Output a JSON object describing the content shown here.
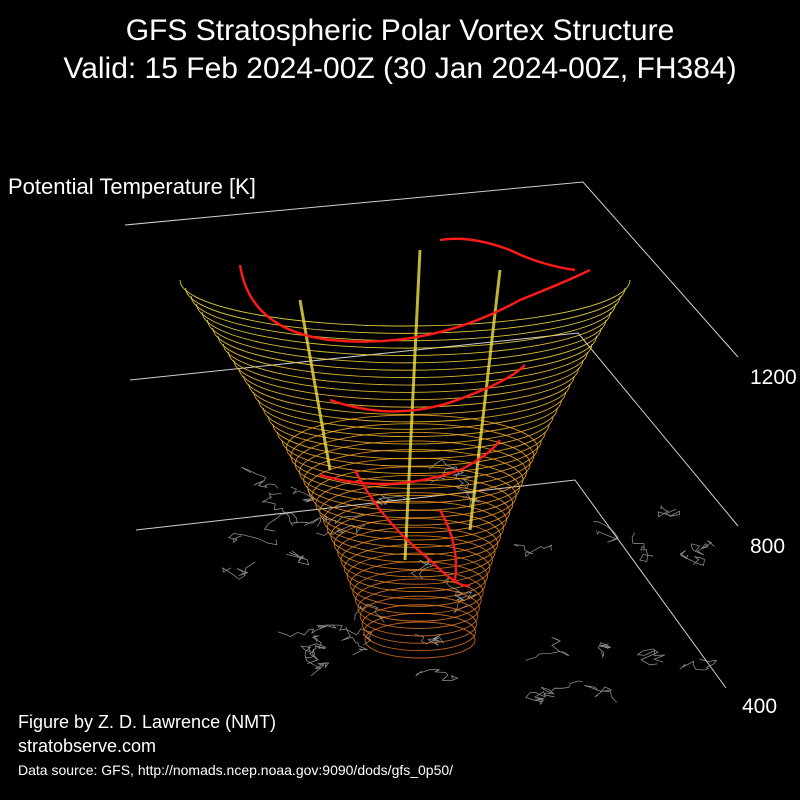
{
  "title_line1": "GFS Stratospheric Polar Vortex Structure",
  "title_line2": "Valid: 15 Feb 2024-00Z  (30 Jan 2024-00Z, FH384)",
  "credit_line1": "Figure by Z. D. Lawrence (NMT)",
  "credit_line2": "stratobserve.com",
  "source_line": "Data source: GFS, http://nomads.ncep.noaa.gov:9090/dods/gfs_0p50/",
  "chart_data": {
    "type": "surface3d",
    "title": "GFS Stratospheric Polar Vortex Structure",
    "subtitle": "Valid: 15 Feb 2024-00Z  (30 Jan 2024-00Z, FH384)",
    "zlabel": "Potential Temperature [K]",
    "z_ticks": [
      "400",
      "800",
      "1200"
    ],
    "z_tick_values": [
      400,
      800,
      1200
    ],
    "zlim": [
      400,
      1400
    ],
    "background": "#000000",
    "colors": {
      "low_levels": "#d2691e",
      "mid_levels": "#f0a020",
      "high_levels": "#f2e040",
      "vortex_edge": "#ff1a1a",
      "coastlines": "#8a8a8a",
      "axis_lines": "#cfcfcf"
    }
  }
}
